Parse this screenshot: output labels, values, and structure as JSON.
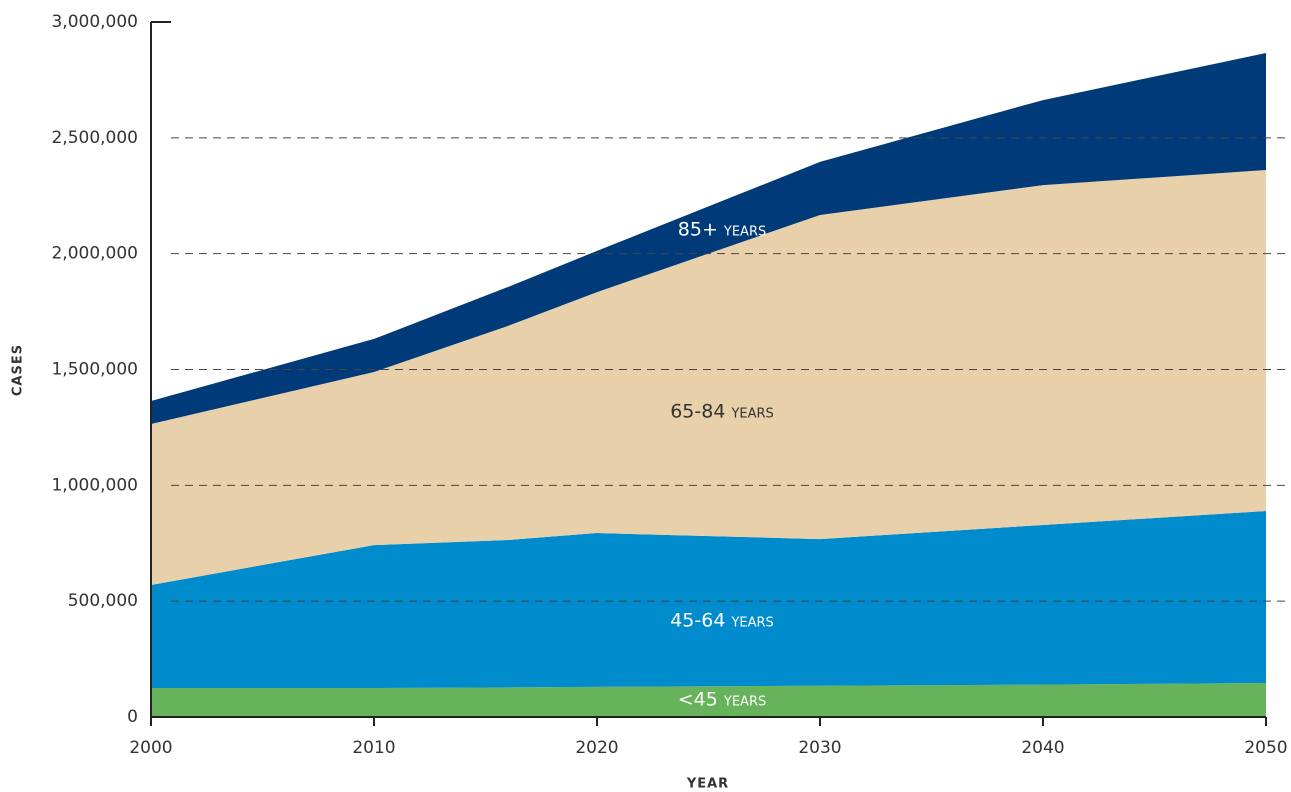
{
  "chart_data": {
    "type": "stacked_area",
    "x_label": "YEAR",
    "y_label": "CASES",
    "x": [
      2000,
      2010,
      2016,
      2020,
      2030,
      2040,
      2050
    ],
    "series": [
      {
        "name": "<45 years",
        "color": "#66b35b",
        "values": [
          125000,
          125000,
          128000,
          130000,
          135000,
          140000,
          147000
        ]
      },
      {
        "name": "45-64 years",
        "color": "#008bcd",
        "values": [
          445000,
          617000,
          636000,
          664000,
          633000,
          689000,
          742000
        ]
      },
      {
        "name": "65-84 years",
        "color": "#e8d0aa",
        "values": [
          695000,
          747000,
          924000,
          1040000,
          1399000,
          1467000,
          1472000
        ]
      },
      {
        "name": "85+ years",
        "color": "#003a78",
        "values": [
          99000,
          143000,
          168000,
          178000,
          229000,
          367000,
          505000
        ]
      }
    ],
    "xlim": [
      2000,
      2050
    ],
    "xticks": [
      2000,
      2010,
      2020,
      2030,
      2040,
      2050
    ],
    "ylim": [
      0,
      3000000
    ],
    "yticks": [
      0,
      {
        "value": 500000,
        "label": "500,000"
      },
      {
        "value": 1000000,
        "label": "1,000,000"
      },
      {
        "value": 1500000,
        "label": "1,500,000"
      },
      {
        "value": 2000000,
        "label": "2,000,000"
      },
      {
        "value": 2500000,
        "label": "2,500,000"
      },
      {
        "value": 3000000,
        "label": "3,000,000"
      }
    ],
    "grid": true
  }
}
